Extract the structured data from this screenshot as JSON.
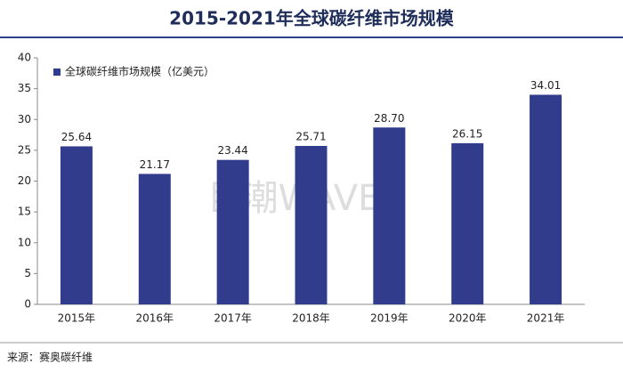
{
  "chart_data": {
    "type": "bar",
    "title": "2015-2021年全球碳纤维市场规模",
    "categories": [
      "2015年",
      "2016年",
      "2017年",
      "2018年",
      "2019年",
      "2020年",
      "2021年"
    ],
    "series": [
      {
        "name": "全球碳纤维市场规模（亿美元）",
        "color": "#313d8c",
        "values": [
          25.64,
          21.17,
          23.44,
          25.71,
          28.7,
          26.15,
          34.01
        ],
        "value_labels": [
          "25.64",
          "21.17",
          "23.44",
          "25.71",
          "28.70",
          "26.15",
          "34.01"
        ]
      }
    ],
    "ylim": [
      0,
      40
    ],
    "yticks": [
      0,
      5,
      10,
      15,
      20,
      25,
      30,
      35,
      40
    ],
    "source": "来源：赛奥碳纤维",
    "watermark": "巨潮WAVE"
  }
}
